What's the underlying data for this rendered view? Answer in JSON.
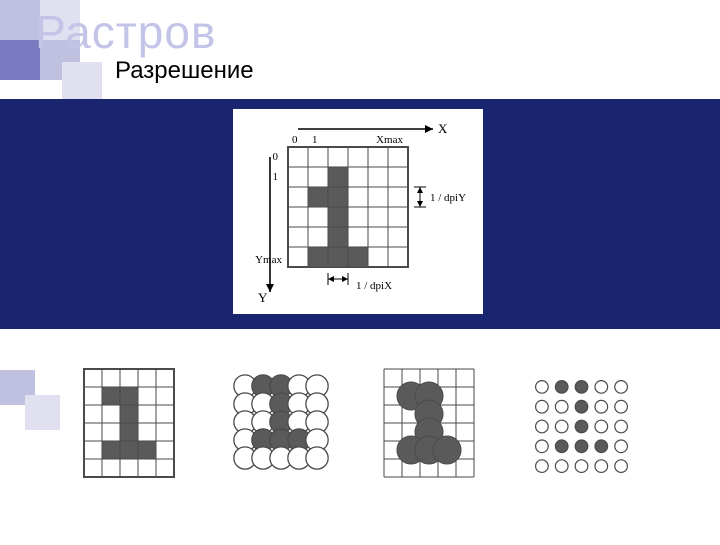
{
  "title_faded": "Растров",
  "subtitle": "Разрешение",
  "colors": {
    "faded_title": "#c4c4e8",
    "navy": "#1a2570",
    "deco_dark": "#1a2570",
    "deco_mid": "#7a7ac0",
    "deco_light": "#c0c0e0",
    "deco_pale": "#e0e0f0",
    "grid_stroke": "#4a4a4a",
    "fill_dark": "#5a5a5a",
    "white": "#ffffff"
  },
  "raster": {
    "labels": {
      "zeroX": "0",
      "oneX": "1",
      "zeroY": "0",
      "oneY": "1",
      "X": "X",
      "Y": "Y",
      "Xmax": "Xmax",
      "Ymax": "Ymax",
      "dpiX": "1 / dpiX",
      "dpiY": "1 / dpiY"
    },
    "gridCols": 6,
    "gridRows": 6,
    "cell": 20,
    "filled": [
      [
        1,
        2
      ],
      [
        2,
        2
      ],
      [
        2,
        3
      ],
      [
        2,
        4
      ],
      [
        1,
        5
      ],
      [
        2,
        5
      ],
      [
        3,
        5
      ]
    ],
    "extra_filled_row1": [
      2,
      1
    ]
  },
  "panels": {
    "cell": 18,
    "cols": 5,
    "rows_grid": 6,
    "rows_circle": 5,
    "shape_filled_grid": [
      [
        1,
        1
      ],
      [
        2,
        1
      ],
      [
        2,
        2
      ],
      [
        2,
        3
      ],
      [
        1,
        4
      ],
      [
        2,
        4
      ],
      [
        3,
        4
      ]
    ],
    "shape_filled_circles1": [
      [
        1,
        0
      ],
      [
        2,
        0
      ],
      [
        2,
        1
      ],
      [
        2,
        2
      ],
      [
        1,
        3
      ],
      [
        2,
        3
      ],
      [
        3,
        3
      ]
    ],
    "shape_filled_circles2": [
      [
        1,
        0
      ],
      [
        2,
        0
      ],
      [
        2,
        1
      ],
      [
        2,
        2
      ],
      [
        1,
        3
      ],
      [
        2,
        3
      ],
      [
        3,
        3
      ]
    ],
    "dots_filled": [
      [
        1,
        0
      ],
      [
        2,
        0
      ],
      [
        2,
        1
      ],
      [
        2,
        2
      ],
      [
        1,
        3
      ],
      [
        2,
        3
      ],
      [
        3,
        3
      ]
    ]
  }
}
